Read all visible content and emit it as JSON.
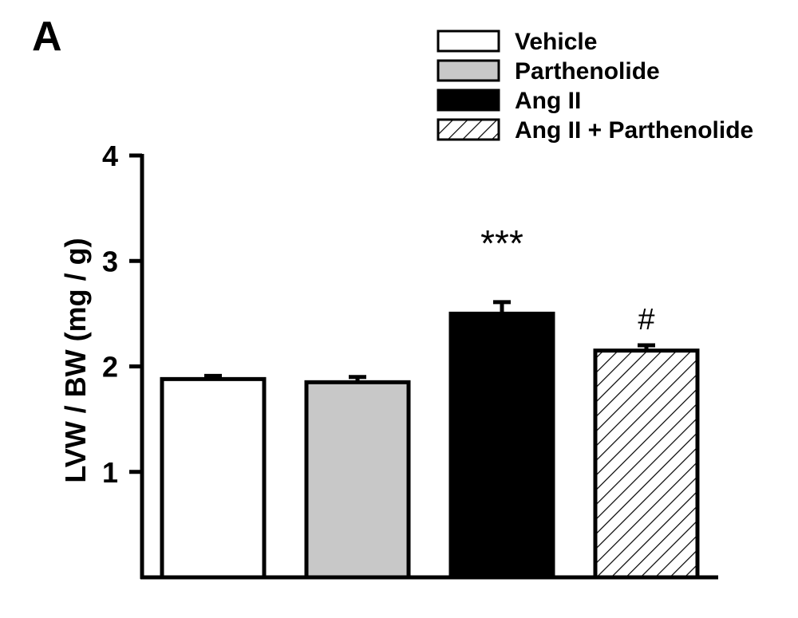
{
  "panel_label": "A",
  "chart_data": {
    "type": "bar",
    "categories": [
      "Vehicle",
      "Parthenolide",
      "Ang II",
      "Ang II + Parthenolide"
    ],
    "values": [
      1.88,
      1.85,
      2.5,
      2.15
    ],
    "errors": [
      0.03,
      0.05,
      0.11,
      0.05
    ],
    "annotations": [
      "",
      "",
      "***",
      "#"
    ],
    "xlabel": "",
    "ylabel": "LVW / BW (mg / g)",
    "ylim": [
      0,
      4
    ],
    "yticks": [
      1,
      2,
      3,
      4
    ],
    "ytick_labels": [
      "1",
      "2",
      "3",
      "4"
    ],
    "grid": false,
    "legend_position": "top-right",
    "fills": [
      "white",
      "light-gray",
      "black",
      "diagonal-hatch"
    ],
    "colors": {
      "light_gray": "#c8c8c8",
      "black": "#000000",
      "white": "#ffffff"
    }
  }
}
